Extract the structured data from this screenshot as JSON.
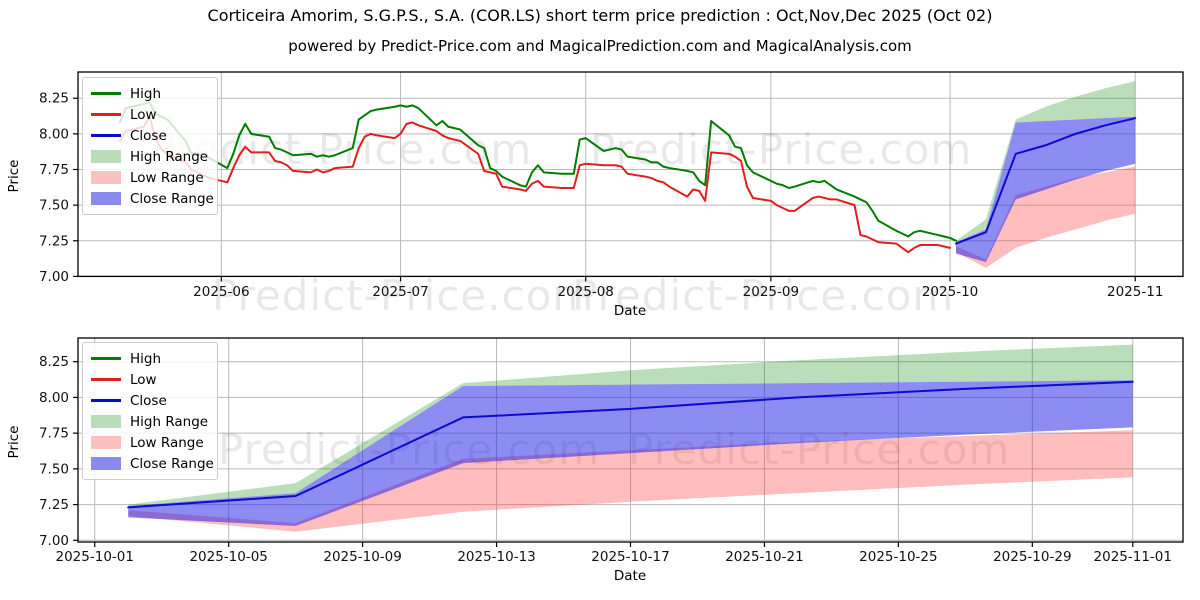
{
  "page": {
    "title": "Corticeira Amorim, S.G.P.S., S.A. (COR.LS) short term price prediction : Oct,Nov,Dec 2025 (Oct 02)",
    "subtitle": "powered by Predict-Price.com and MagicalPrediction.com and MagicalAnalysis.com"
  },
  "watermark": {
    "text": "Predict-Price.com",
    "color": "#000000",
    "opacity": 0.09
  },
  "colors": {
    "grid": "#b9b9b9",
    "spine": "#000000",
    "tick_label": "#111111",
    "high_line": "#007d00",
    "low_line": "#e01f1f",
    "close_line": "#0b0bcf",
    "high_fill": "rgba(0,128,0,0.27)",
    "low_fill": "rgba(255,50,50,0.32)",
    "close_fill": "rgba(25,25,230,0.50)",
    "high_swatch": "#b9dcb9",
    "low_swatch": "#fbc0c0",
    "close_swatch": "#8a8aee"
  },
  "chart_data": [
    {
      "type": "line",
      "title": "",
      "xlabel": "Date",
      "ylabel": "Price",
      "grid": true,
      "legend_position": "upper left",
      "ylim": [
        7.0,
        8.434
      ],
      "xlim": [
        "2025-05-08",
        "2025-11-09"
      ],
      "yticks": [
        {
          "label": "7.00",
          "value": 7.0
        },
        {
          "label": "7.25",
          "value": 7.25
        },
        {
          "label": "7.50",
          "value": 7.5
        },
        {
          "label": "7.75",
          "value": 7.75
        },
        {
          "label": "8.00",
          "value": 8.0
        },
        {
          "label": "8.25",
          "value": 8.25
        }
      ],
      "xticks": [
        {
          "label": "2025-06",
          "date": "2025-06-01"
        },
        {
          "label": "2025-07",
          "date": "2025-07-01"
        },
        {
          "label": "2025-08",
          "date": "2025-08-01"
        },
        {
          "label": "2025-09",
          "date": "2025-09-01"
        },
        {
          "label": "2025-10",
          "date": "2025-10-01"
        },
        {
          "label": "2025-11",
          "date": "2025-11-01"
        }
      ],
      "legend": [
        {
          "label": "High",
          "kind": "line",
          "color": "#007d00"
        },
        {
          "label": "Low",
          "kind": "line",
          "color": "#e01f1f"
        },
        {
          "label": "Close",
          "kind": "line",
          "color": "#0b0bcf"
        },
        {
          "label": "High Range",
          "kind": "patch",
          "color": "#b9dcb9"
        },
        {
          "label": "Low Range",
          "kind": "patch",
          "color": "#fbc0c0"
        },
        {
          "label": "Close Range",
          "kind": "patch",
          "color": "#8a8aee"
        }
      ],
      "historical": {
        "dates": [
          "2025-05-15",
          "2025-05-16",
          "2025-05-19",
          "2025-05-20",
          "2025-05-21",
          "2025-05-22",
          "2025-05-23",
          "2025-05-26",
          "2025-05-27",
          "2025-05-28",
          "2025-05-29",
          "2025-05-30",
          "2025-06-02",
          "2025-06-03",
          "2025-06-04",
          "2025-06-05",
          "2025-06-06",
          "2025-06-09",
          "2025-06-10",
          "2025-06-11",
          "2025-06-12",
          "2025-06-13",
          "2025-06-16",
          "2025-06-17",
          "2025-06-18",
          "2025-06-19",
          "2025-06-20",
          "2025-06-23",
          "2025-06-24",
          "2025-06-25",
          "2025-06-26",
          "2025-06-27",
          "2025-06-30",
          "2025-07-01",
          "2025-07-02",
          "2025-07-03",
          "2025-07-04",
          "2025-07-07",
          "2025-07-08",
          "2025-07-09",
          "2025-07-10",
          "2025-07-11",
          "2025-07-14",
          "2025-07-15",
          "2025-07-16",
          "2025-07-17",
          "2025-07-18",
          "2025-07-21",
          "2025-07-22",
          "2025-07-23",
          "2025-07-24",
          "2025-07-25",
          "2025-07-28",
          "2025-07-29",
          "2025-07-30",
          "2025-07-31",
          "2025-08-01",
          "2025-08-04",
          "2025-08-05",
          "2025-08-06",
          "2025-08-07",
          "2025-08-08",
          "2025-08-11",
          "2025-08-12",
          "2025-08-13",
          "2025-08-14",
          "2025-08-15",
          "2025-08-18",
          "2025-08-19",
          "2025-08-20",
          "2025-08-21",
          "2025-08-22",
          "2025-08-25",
          "2025-08-26",
          "2025-08-27",
          "2025-08-28",
          "2025-08-29",
          "2025-09-01",
          "2025-09-02",
          "2025-09-03",
          "2025-09-04",
          "2025-09-05",
          "2025-09-08",
          "2025-09-09",
          "2025-09-10",
          "2025-09-11",
          "2025-09-12",
          "2025-09-15",
          "2025-09-16",
          "2025-09-17",
          "2025-09-18",
          "2025-09-19",
          "2025-09-22",
          "2025-09-23",
          "2025-09-24",
          "2025-09-25",
          "2025-09-26",
          "2025-09-29",
          "2025-09-30",
          "2025-10-01",
          "2025-10-02"
        ],
        "high": [
          8.08,
          8.18,
          8.21,
          8.22,
          8.14,
          8.12,
          8.1,
          7.95,
          7.86,
          7.85,
          7.86,
          7.83,
          7.76,
          7.86,
          7.99,
          8.07,
          8.0,
          7.98,
          7.9,
          7.89,
          7.87,
          7.85,
          7.86,
          7.84,
          7.85,
          7.84,
          7.85,
          7.9,
          8.1,
          8.13,
          8.16,
          8.17,
          8.19,
          8.2,
          8.19,
          8.2,
          8.18,
          8.06,
          8.09,
          8.05,
          8.04,
          8.03,
          7.92,
          7.9,
          7.76,
          7.74,
          7.7,
          7.64,
          7.63,
          7.73,
          7.78,
          7.73,
          7.72,
          7.72,
          7.72,
          7.96,
          7.97,
          7.88,
          7.89,
          7.9,
          7.89,
          7.84,
          7.82,
          7.8,
          7.8,
          7.77,
          7.76,
          7.74,
          7.73,
          7.67,
          7.64,
          8.09,
          7.99,
          7.91,
          7.9,
          7.78,
          7.73,
          7.67,
          7.65,
          7.64,
          7.62,
          7.63,
          7.67,
          7.66,
          7.67,
          7.64,
          7.61,
          7.56,
          7.54,
          7.52,
          7.46,
          7.39,
          7.32,
          7.3,
          7.28,
          7.31,
          7.32,
          7.29,
          7.28,
          7.27,
          7.25
        ],
        "low": [
          7.95,
          8.02,
          8.05,
          8.12,
          7.96,
          7.89,
          7.86,
          7.8,
          7.75,
          7.73,
          7.71,
          7.69,
          7.66,
          7.76,
          7.85,
          7.91,
          7.87,
          7.87,
          7.81,
          7.8,
          7.78,
          7.74,
          7.73,
          7.75,
          7.73,
          7.74,
          7.76,
          7.77,
          7.9,
          7.98,
          8.0,
          7.99,
          7.97,
          8.0,
          8.07,
          8.08,
          8.06,
          8.02,
          7.99,
          7.97,
          7.96,
          7.95,
          7.86,
          7.74,
          7.73,
          7.72,
          7.63,
          7.61,
          7.6,
          7.65,
          7.67,
          7.63,
          7.62,
          7.62,
          7.62,
          7.78,
          7.79,
          7.78,
          7.78,
          7.78,
          7.77,
          7.72,
          7.7,
          7.69,
          7.67,
          7.66,
          7.63,
          7.56,
          7.61,
          7.6,
          7.53,
          7.87,
          7.86,
          7.84,
          7.81,
          7.63,
          7.55,
          7.53,
          7.5,
          7.48,
          7.46,
          7.46,
          7.55,
          7.56,
          7.55,
          7.54,
          7.54,
          7.5,
          7.29,
          7.28,
          7.26,
          7.24,
          7.23,
          7.2,
          7.17,
          7.2,
          7.22,
          7.22,
          7.21,
          7.2
        ]
      },
      "prediction": {
        "dates": [
          "2025-10-02",
          "2025-10-07",
          "2025-10-12",
          "2025-10-17",
          "2025-10-22",
          "2025-10-27",
          "2025-11-01"
        ],
        "close": [
          7.23,
          7.31,
          7.86,
          7.92,
          8.0,
          8.06,
          8.11
        ],
        "high_range_top": [
          7.25,
          7.4,
          8.1,
          8.19,
          8.26,
          8.32,
          8.37
        ],
        "close_range_top": [
          7.24,
          7.33,
          8.08,
          8.09,
          8.1,
          8.11,
          8.12
        ],
        "close_range_bottom": [
          7.16,
          7.1,
          7.54,
          7.61,
          7.68,
          7.74,
          7.79
        ],
        "low_range_top": [
          7.21,
          7.12,
          7.57,
          7.63,
          7.69,
          7.73,
          7.77
        ],
        "low_range_bottom": [
          7.17,
          7.06,
          7.2,
          7.27,
          7.33,
          7.39,
          7.44
        ]
      }
    },
    {
      "type": "line",
      "title": "",
      "xlabel": "Date",
      "ylabel": "Price",
      "grid": true,
      "legend_position": "upper left",
      "ylim": [
        6.988,
        8.416
      ],
      "xlim": [
        "2025-09-30T12:00:00",
        "2025-11-02T12:00:00"
      ],
      "yticks": [
        {
          "label": "7.00",
          "value": 7.0
        },
        {
          "label": "7.25",
          "value": 7.25
        },
        {
          "label": "7.50",
          "value": 7.5
        },
        {
          "label": "7.75",
          "value": 7.75
        },
        {
          "label": "8.00",
          "value": 8.0
        },
        {
          "label": "8.25",
          "value": 8.25
        }
      ],
      "xticks": [
        {
          "label": "2025-10-01",
          "date": "2025-10-01"
        },
        {
          "label": "2025-10-05",
          "date": "2025-10-05"
        },
        {
          "label": "2025-10-09",
          "date": "2025-10-09"
        },
        {
          "label": "2025-10-13",
          "date": "2025-10-13"
        },
        {
          "label": "2025-10-17",
          "date": "2025-10-17"
        },
        {
          "label": "2025-10-21",
          "date": "2025-10-21"
        },
        {
          "label": "2025-10-25",
          "date": "2025-10-25"
        },
        {
          "label": "2025-10-29",
          "date": "2025-10-29"
        },
        {
          "label": "2025-11-01",
          "date": "2025-11-01"
        }
      ],
      "legend": [
        {
          "label": "High",
          "kind": "line",
          "color": "#007d00"
        },
        {
          "label": "Low",
          "kind": "line",
          "color": "#e01f1f"
        },
        {
          "label": "Close",
          "kind": "line",
          "color": "#0b0bcf"
        },
        {
          "label": "High Range",
          "kind": "patch",
          "color": "#b9dcb9"
        },
        {
          "label": "Low Range",
          "kind": "patch",
          "color": "#fbc0c0"
        },
        {
          "label": "Close Range",
          "kind": "patch",
          "color": "#8a8aee"
        }
      ],
      "prediction": {
        "dates": [
          "2025-10-02",
          "2025-10-07",
          "2025-10-12",
          "2025-10-17",
          "2025-10-22",
          "2025-10-27",
          "2025-11-01"
        ],
        "close": [
          7.23,
          7.31,
          7.86,
          7.92,
          8.0,
          8.06,
          8.11
        ],
        "high_range_top": [
          7.25,
          7.4,
          8.1,
          8.19,
          8.26,
          8.32,
          8.37
        ],
        "close_range_top": [
          7.24,
          7.33,
          8.08,
          8.09,
          8.1,
          8.11,
          8.12
        ],
        "close_range_bottom": [
          7.16,
          7.1,
          7.54,
          7.61,
          7.68,
          7.74,
          7.79
        ],
        "low_range_top": [
          7.21,
          7.12,
          7.57,
          7.63,
          7.69,
          7.73,
          7.77
        ],
        "low_range_bottom": [
          7.17,
          7.06,
          7.2,
          7.27,
          7.33,
          7.39,
          7.44
        ]
      }
    }
  ]
}
